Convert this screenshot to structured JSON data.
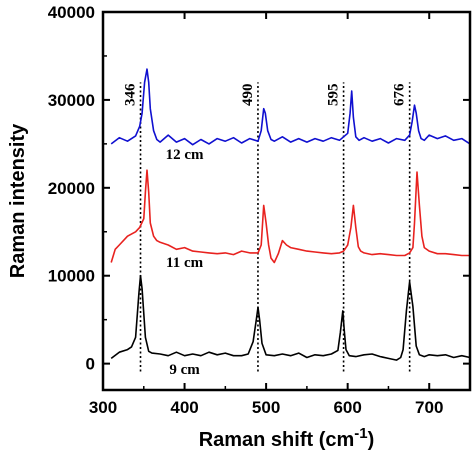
{
  "chart_data": {
    "type": "line",
    "xlabel": "Raman shift (cm",
    "xlabel_sup": "-1",
    "xlabel_close": ")",
    "ylabel": "Raman intensity",
    "xlim": [
      300,
      750
    ],
    "ylim": [
      -3000,
      40000
    ],
    "xticks": [
      300,
      400,
      500,
      600,
      700
    ],
    "yticks": [
      0,
      10000,
      20000,
      30000,
      40000
    ],
    "grid": false,
    "reference_peaks": [
      {
        "x": 346,
        "label": "346"
      },
      {
        "x": 490,
        "label": "490"
      },
      {
        "x": 595,
        "label": "595"
      },
      {
        "x": 676,
        "label": "676"
      }
    ],
    "series": [
      {
        "name": "9 cm",
        "color": "#000000",
        "label_anchor": {
          "x": 400,
          "y": -1200
        },
        "x": [
          310,
          320,
          330,
          335,
          340,
          344,
          346,
          348,
          352,
          356,
          360,
          370,
          380,
          390,
          400,
          410,
          420,
          430,
          440,
          450,
          460,
          470,
          478,
          484,
          488,
          490,
          492,
          495,
          500,
          510,
          520,
          530,
          540,
          550,
          560,
          570,
          580,
          588,
          591,
          594,
          596,
          598,
          602,
          610,
          620,
          630,
          640,
          650,
          660,
          665,
          668,
          672,
          676,
          680,
          684,
          688,
          694,
          700,
          710,
          720,
          730,
          740,
          750
        ],
        "y": [
          600,
          1300,
          1600,
          1900,
          3000,
          8000,
          10000,
          8500,
          3000,
          1400,
          1200,
          1100,
          900,
          1300,
          900,
          1100,
          900,
          1300,
          1000,
          1200,
          900,
          900,
          1100,
          2500,
          5000,
          6400,
          5000,
          2300,
          1000,
          900,
          1100,
          900,
          1200,
          700,
          1000,
          900,
          1100,
          1500,
          3500,
          6000,
          3600,
          1600,
          900,
          800,
          1000,
          1100,
          800,
          600,
          400,
          700,
          1600,
          6000,
          9300,
          6500,
          2000,
          1000,
          800,
          1000,
          900,
          1000,
          700,
          900,
          700
        ]
      },
      {
        "name": "11 cm",
        "color": "#e8221f",
        "label_anchor": {
          "x": 400,
          "y": 11000
        },
        "x": [
          310,
          315,
          320,
          330,
          340,
          345,
          350,
          352,
          354,
          356,
          358,
          362,
          366,
          370,
          380,
          390,
          400,
          410,
          420,
          430,
          440,
          450,
          460,
          470,
          480,
          490,
          494,
          497,
          500,
          503,
          506,
          510,
          515,
          520,
          525,
          530,
          540,
          550,
          560,
          570,
          580,
          590,
          595,
          600,
          604,
          607,
          610,
          613,
          616,
          620,
          630,
          640,
          650,
          660,
          670,
          676,
          680,
          682,
          685,
          688,
          691,
          694,
          700,
          710,
          720,
          730,
          740,
          750
        ],
        "y": [
          11500,
          13000,
          13500,
          14500,
          15000,
          15500,
          16500,
          19500,
          22000,
          19500,
          16000,
          14500,
          14000,
          13800,
          13500,
          13000,
          13200,
          12800,
          12700,
          12600,
          12500,
          12600,
          12400,
          12800,
          12600,
          12600,
          13500,
          18000,
          16000,
          13500,
          12000,
          11500,
          12500,
          14000,
          13500,
          13200,
          13000,
          12800,
          12700,
          12600,
          12500,
          12600,
          12800,
          13500,
          15500,
          18000,
          15500,
          13300,
          12800,
          12600,
          12400,
          12500,
          12400,
          12300,
          12300,
          12600,
          13200,
          16000,
          21800,
          18000,
          14500,
          13200,
          12800,
          12500,
          12500,
          12400,
          12300,
          12300
        ]
      },
      {
        "name": "12 cm",
        "color": "#1010d0",
        "label_anchor": {
          "x": 400,
          "y": 23300
        },
        "x": [
          310,
          320,
          330,
          340,
          345,
          348,
          351,
          354,
          356,
          358,
          362,
          366,
          370,
          380,
          390,
          400,
          410,
          420,
          430,
          440,
          450,
          460,
          470,
          480,
          490,
          494,
          497,
          499,
          502,
          506,
          510,
          520,
          530,
          540,
          550,
          560,
          570,
          580,
          590,
          595,
          600,
          603,
          605,
          607,
          610,
          614,
          620,
          630,
          640,
          650,
          660,
          670,
          676,
          679,
          682,
          684,
          687,
          690,
          694,
          700,
          710,
          720,
          730,
          740,
          750
        ],
        "y": [
          25000,
          25700,
          25300,
          25900,
          27000,
          28500,
          32000,
          33500,
          32000,
          29000,
          26500,
          25500,
          25200,
          26000,
          25200,
          25600,
          24900,
          25500,
          25000,
          25600,
          25300,
          25700,
          25100,
          25600,
          25300,
          26500,
          29000,
          28500,
          26500,
          25500,
          25300,
          25800,
          25200,
          25600,
          25200,
          25600,
          25300,
          25700,
          25400,
          25800,
          26200,
          28500,
          31000,
          28000,
          25800,
          25400,
          25700,
          25300,
          25600,
          25100,
          25600,
          25400,
          26000,
          27500,
          29400,
          28500,
          26500,
          25600,
          25400,
          26000,
          25600,
          25900,
          25400,
          25600,
          25000
        ]
      }
    ]
  }
}
